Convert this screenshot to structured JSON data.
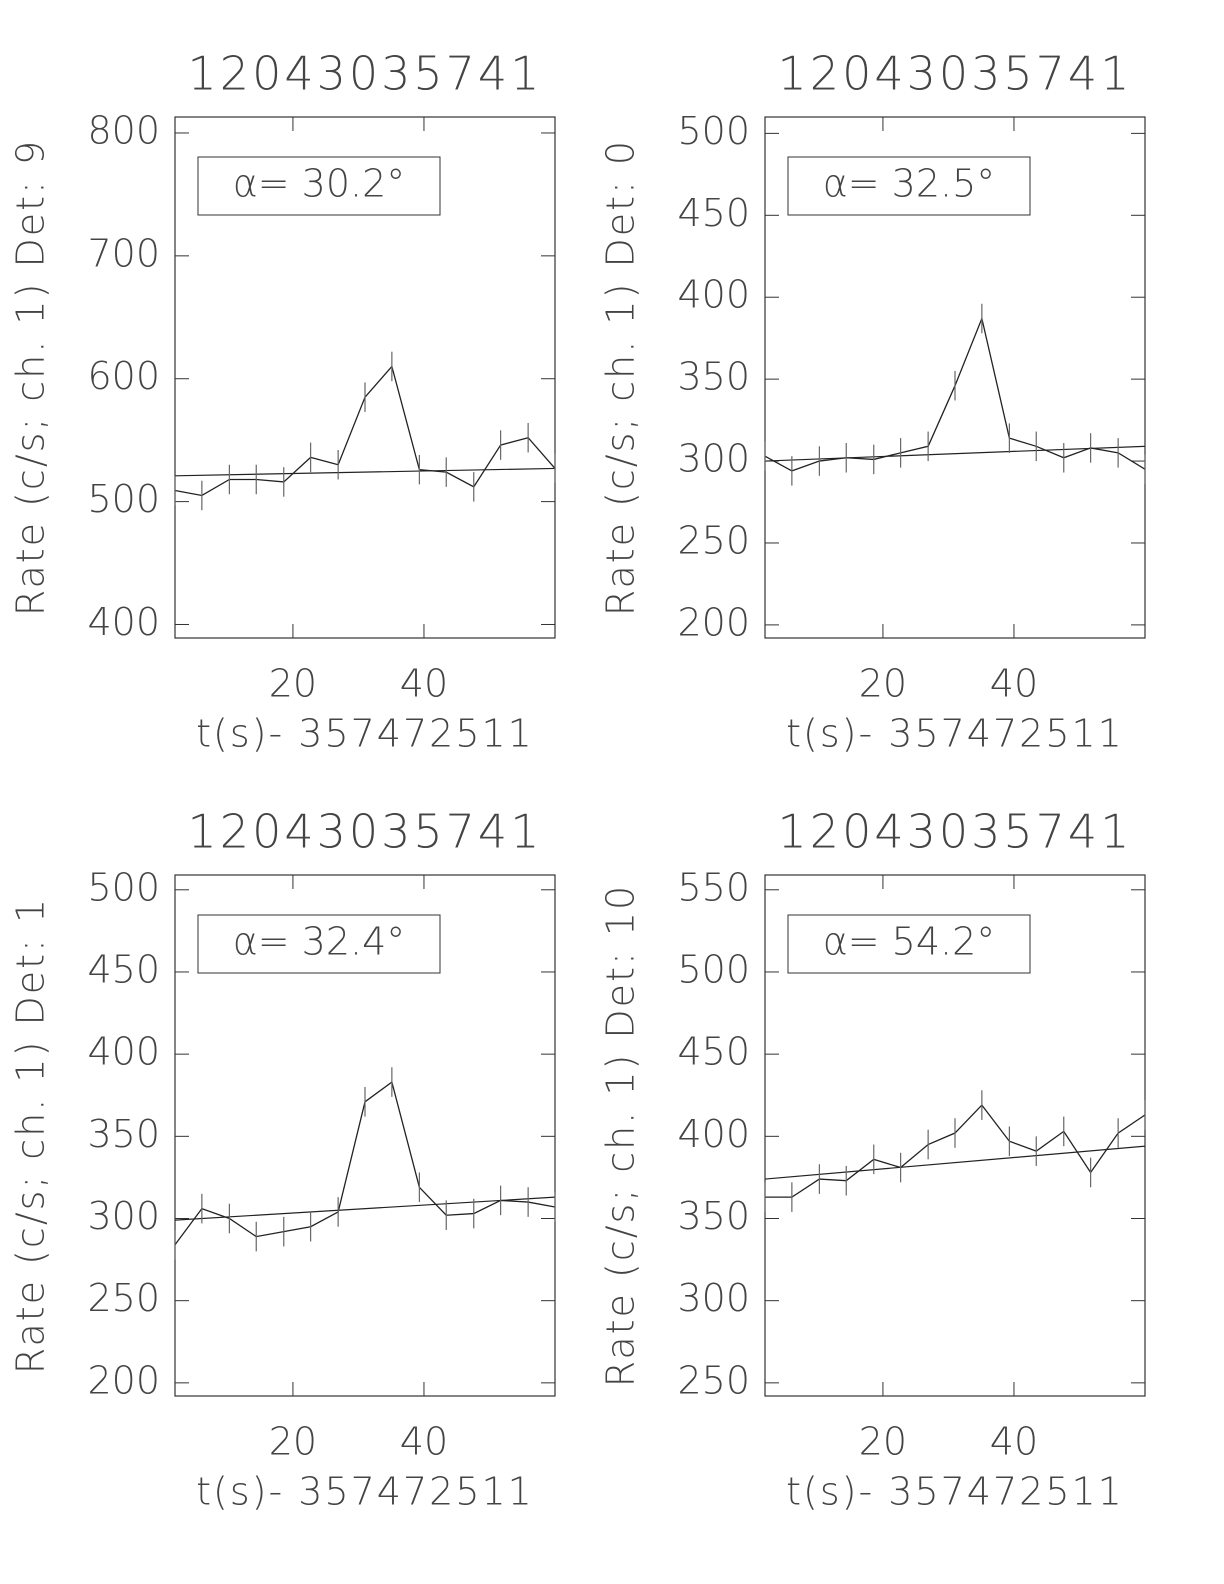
{
  "chart_data": [
    {
      "type": "line",
      "title": "12043035741",
      "xlabel": "t(s)- 357472511",
      "ylabel": "Rate (c/s; ch. 1) Det: 9",
      "annotation": "α= 30.2°",
      "x": [
        2,
        6.1,
        10.3,
        14.4,
        18.6,
        22.7,
        26.9,
        31,
        35.1,
        39.3,
        43.4,
        47.6,
        51.7,
        55.9,
        60
      ],
      "values": [
        509,
        505,
        518,
        518,
        516,
        536,
        530,
        585,
        610,
        526,
        524,
        512,
        546,
        552,
        527
      ],
      "errors": [
        12,
        12,
        12,
        12,
        12,
        12,
        12,
        12,
        12,
        12,
        12,
        12,
        12,
        12,
        12
      ],
      "fit_x": [
        2,
        60
      ],
      "fit_values": [
        521,
        527
      ],
      "color": "#222222",
      "xlim": [
        2,
        60
      ],
      "xticks": [
        20,
        40
      ],
      "ylim": [
        389,
        813
      ],
      "yticks": [
        400,
        500,
        600,
        700,
        800
      ]
    },
    {
      "type": "line",
      "title": "12043035741",
      "xlabel": "t(s)- 357472511",
      "ylabel": "Rate (c/s; ch. 1) Det: 0",
      "annotation": "α= 32.5°",
      "x": [
        2,
        6.1,
        10.3,
        14.4,
        18.6,
        22.7,
        26.9,
        31,
        35.1,
        39.3,
        43.4,
        47.6,
        51.7,
        55.9,
        60
      ],
      "values": [
        303,
        294,
        300,
        302,
        301,
        305,
        309,
        346,
        387,
        314,
        309,
        302,
        308,
        305,
        295
      ],
      "errors": [
        9,
        9,
        9,
        9,
        9,
        9,
        9,
        9,
        9,
        9,
        9,
        9,
        9,
        9,
        9
      ],
      "fit_x": [
        2,
        60
      ],
      "fit_values": [
        300,
        309
      ],
      "color": "#222222",
      "xlim": [
        2,
        60
      ],
      "xticks": [
        20,
        40
      ],
      "ylim": [
        192,
        510
      ],
      "yticks": [
        200,
        250,
        300,
        350,
        400,
        450,
        500
      ]
    },
    {
      "type": "line",
      "title": "12043035741",
      "xlabel": "t(s)- 357472511",
      "ylabel": "Rate (c/s; ch. 1) Det: 1",
      "annotation": "α= 32.4°",
      "x": [
        2,
        6.1,
        10.3,
        14.4,
        18.6,
        22.7,
        26.9,
        31,
        35.1,
        39.3,
        43.4,
        47.6,
        51.7,
        55.9,
        60
      ],
      "values": [
        284,
        306,
        300,
        289,
        292,
        295,
        304,
        371,
        383,
        319,
        302,
        303,
        311,
        310,
        307
      ],
      "errors": [
        9,
        9,
        9,
        9,
        9,
        9,
        9,
        9,
        9,
        9,
        9,
        9,
        9,
        9,
        9
      ],
      "fit_x": [
        2,
        60
      ],
      "fit_values": [
        299,
        313
      ],
      "color": "#222222",
      "xlim": [
        2,
        60
      ],
      "xticks": [
        20,
        40
      ],
      "ylim": [
        192,
        509
      ],
      "yticks": [
        200,
        250,
        300,
        350,
        400,
        450,
        500
      ]
    },
    {
      "type": "line",
      "title": "12043035741",
      "xlabel": "t(s)- 357472511",
      "ylabel": "Rate (c/s; ch. 1) Det: 10",
      "annotation": "α= 54.2°",
      "x": [
        2,
        6.1,
        10.3,
        14.4,
        18.6,
        22.7,
        26.9,
        31,
        35.1,
        39.3,
        43.4,
        47.6,
        51.7,
        55.9,
        60
      ],
      "values": [
        363,
        363,
        374,
        373,
        386,
        381,
        395,
        402,
        419,
        397,
        391,
        403,
        378,
        402,
        413
      ],
      "errors": [
        9,
        9,
        9,
        9,
        9,
        9,
        9,
        9,
        9,
        9,
        9,
        9,
        9,
        9,
        9
      ],
      "fit_x": [
        2,
        60
      ],
      "fit_values": [
        374,
        394
      ],
      "color": "#222222",
      "xlim": [
        2,
        60
      ],
      "xticks": [
        20,
        40
      ],
      "ylim": [
        242,
        559
      ],
      "yticks": [
        250,
        300,
        350,
        400,
        450,
        500,
        550
      ]
    }
  ]
}
